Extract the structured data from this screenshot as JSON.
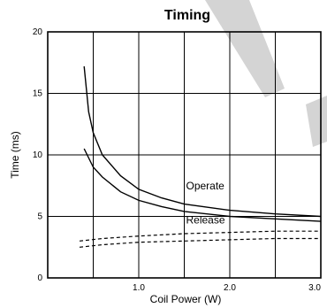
{
  "chart_data": {
    "type": "line",
    "title": "Timing",
    "xlabel": "Coil Power (W)",
    "ylabel": "Time (ms)",
    "xlim": [
      0,
      3.0
    ],
    "ylim": [
      0,
      20
    ],
    "x_ticks": [
      {
        "value": 1.0,
        "label": "1.0"
      },
      {
        "value": 2.0,
        "label": "2.0"
      },
      {
        "value": 3.0,
        "label": "3.0"
      }
    ],
    "y_ticks": [
      {
        "value": 0,
        "label": "0"
      },
      {
        "value": 5,
        "label": "5"
      },
      {
        "value": 10,
        "label": "10"
      },
      {
        "value": 15,
        "label": "15"
      },
      {
        "value": 20,
        "label": "20"
      }
    ],
    "grid": true,
    "series": [
      {
        "name": "Operate",
        "style": "solid",
        "x": [
          0.4,
          0.45,
          0.5,
          0.6,
          0.8,
          1.0,
          1.25,
          1.5,
          2.0,
          2.5,
          3.0
        ],
        "y": [
          17.2,
          13.5,
          11.8,
          10.0,
          8.3,
          7.2,
          6.5,
          6.0,
          5.5,
          5.2,
          5.0
        ]
      },
      {
        "name": "Release",
        "style": "solid",
        "x": [
          0.4,
          0.5,
          0.6,
          0.8,
          1.0,
          1.25,
          1.5,
          2.0,
          2.5,
          3.0
        ],
        "y": [
          10.5,
          9.0,
          8.2,
          7.0,
          6.3,
          5.8,
          5.4,
          5.0,
          4.8,
          4.6
        ]
      },
      {
        "style": "dashed",
        "x": [
          0.35,
          0.6,
          1.0,
          1.5,
          2.0,
          2.5,
          3.0
        ],
        "y": [
          3.0,
          3.2,
          3.4,
          3.6,
          3.7,
          3.8,
          3.8
        ]
      },
      {
        "style": "dashed",
        "x": [
          0.35,
          0.6,
          1.0,
          1.5,
          2.0,
          2.5,
          3.0
        ],
        "y": [
          2.5,
          2.7,
          2.9,
          3.0,
          3.1,
          3.2,
          3.2
        ]
      }
    ],
    "annotations": [
      {
        "text": "Operate",
        "x": 1.5,
        "y": 7.5
      },
      {
        "text": "Release",
        "x": 1.5,
        "y": 4.7
      }
    ]
  }
}
